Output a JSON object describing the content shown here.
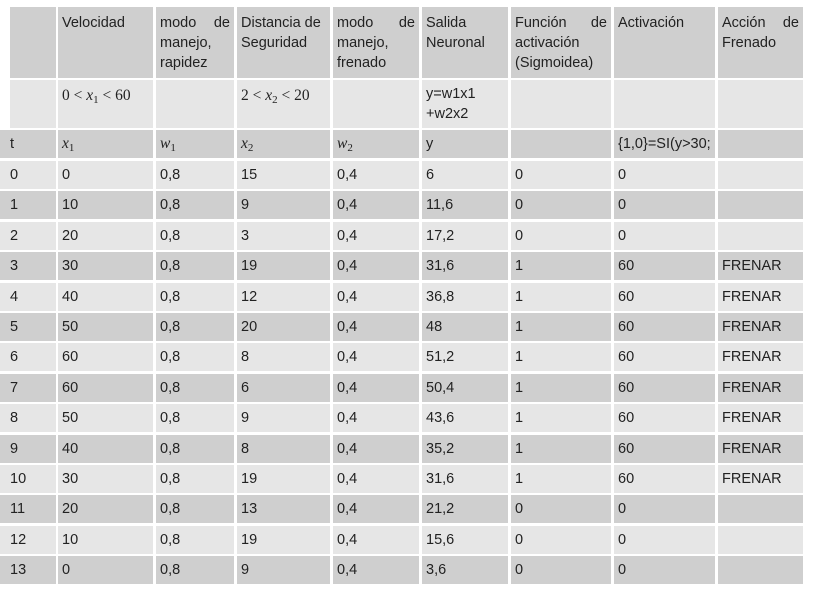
{
  "colors": {
    "dark": "#cfcfcf",
    "light": "#e6e6e6"
  },
  "headers": [
    "",
    "Velocidad",
    "modo de manejo, rapidez",
    "Distancia de Seguridad",
    "modo de manejo, frenado",
    "Salida Neuronal",
    "Función de activación (Sigmoidea)",
    "Activación",
    "Acción de Frenado"
  ],
  "ranges": {
    "x1_lo": "0",
    "x1_hi": "60",
    "x2_lo": "2",
    "x2_hi": "20",
    "formula": "y=w1x1 +w2x2"
  },
  "symbols": {
    "t": "t",
    "x": "x",
    "w": "w",
    "sub1": "1",
    "sub2": "2",
    "lt": "<",
    "y": "y",
    "activation_rule": "{1,0}=SI(y>30;"
  },
  "rows": [
    [
      "0",
      "0",
      "0,8",
      "15",
      "0,4",
      "6",
      "0",
      "0",
      ""
    ],
    [
      "1",
      "10",
      "0,8",
      "9",
      "0,4",
      "11,6",
      "0",
      "0",
      ""
    ],
    [
      "2",
      "20",
      "0,8",
      "3",
      "0,4",
      "17,2",
      "0",
      "0",
      ""
    ],
    [
      "3",
      "30",
      "0,8",
      "19",
      "0,4",
      "31,6",
      "1",
      "60",
      "FRENAR"
    ],
    [
      "4",
      "40",
      "0,8",
      "12",
      "0,4",
      "36,8",
      "1",
      "60",
      "FRENAR"
    ],
    [
      "5",
      "50",
      "0,8",
      "20",
      "0,4",
      "48",
      "1",
      "60",
      "FRENAR"
    ],
    [
      "6",
      "60",
      "0,8",
      "8",
      "0,4",
      "51,2",
      "1",
      "60",
      "FRENAR"
    ],
    [
      "7",
      "60",
      "0,8",
      "6",
      "0,4",
      "50,4",
      "1",
      "60",
      "FRENAR"
    ],
    [
      "8",
      "50",
      "0,8",
      "9",
      "0,4",
      "43,6",
      "1",
      "60",
      "FRENAR"
    ],
    [
      "9",
      "40",
      "0,8",
      "8",
      "0,4",
      "35,2",
      "1",
      "60",
      "FRENAR"
    ],
    [
      "10",
      "30",
      "0,8",
      "19",
      "0,4",
      "31,6",
      "1",
      "60",
      "FRENAR"
    ],
    [
      "11",
      "20",
      "0,8",
      "13",
      "0,4",
      "21,2",
      "0",
      "0",
      ""
    ],
    [
      "12",
      "10",
      "0,8",
      "19",
      "0,4",
      "15,6",
      "0",
      "0",
      ""
    ],
    [
      "13",
      "0",
      "0,8",
      "9",
      "0,4",
      "3,6",
      "0",
      "0",
      ""
    ]
  ]
}
